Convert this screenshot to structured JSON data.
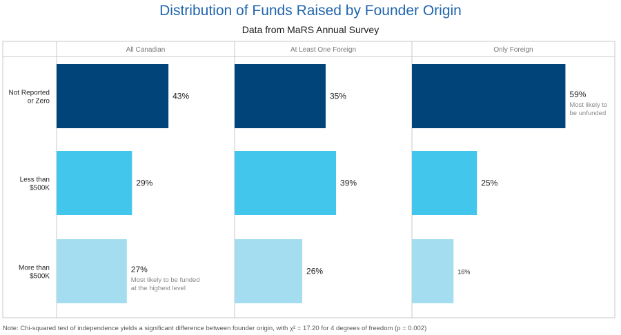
{
  "chart_data": {
    "type": "bar",
    "orientation": "horizontal",
    "title": "Distribution of Funds Raised by Founder Origin",
    "subtitle": "Data from MaRS Annual Survey",
    "panels": [
      "All Canadian",
      "At Least One Foreign",
      "Only Foreign"
    ],
    "categories": [
      [
        "Not Reported",
        "or Zero"
      ],
      [
        "Less than",
        "$500K"
      ],
      [
        "More than",
        "$500K"
      ]
    ],
    "values": [
      [
        43,
        29,
        27
      ],
      [
        35,
        39,
        26
      ],
      [
        59,
        25,
        16
      ]
    ],
    "value_labels": [
      [
        "43%",
        "29%",
        "27%"
      ],
      [
        "35%",
        "39%",
        "26%"
      ],
      [
        "59%",
        "25%",
        "16%"
      ]
    ],
    "annotations": [
      {
        "panel": 0,
        "category": 2,
        "lines": [
          "Most likely to be funded",
          "at the highest level"
        ]
      },
      {
        "panel": 2,
        "category": 0,
        "lines": [
          "Most likely to",
          "be unfunded"
        ]
      }
    ],
    "xlim": [
      0,
      100
    ],
    "colors": [
      "#004479",
      "#42c6ec",
      "#a5ddf0"
    ]
  },
  "note": "Note: Chi-squared test of independence yields a significant difference between founder origin, with χ² = 17.20 for 4 degrees of freedom (p = 0.002)"
}
